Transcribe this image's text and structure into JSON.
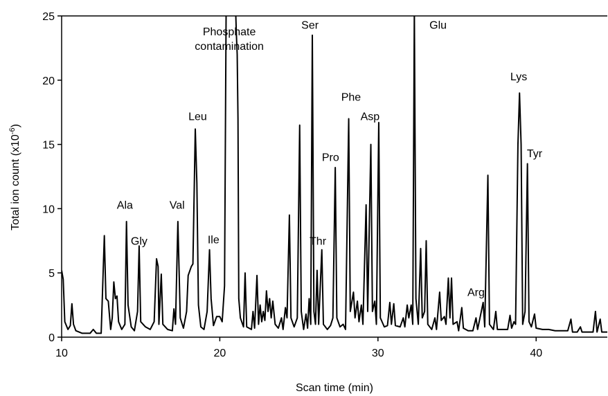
{
  "chart_data": {
    "type": "line",
    "xlabel": "Scan time (min)",
    "ylabel_main": "Total ion count (x10",
    "ylabel_exp": "-6",
    "ylabel_end": ")",
    "xlim": [
      10,
      44.5
    ],
    "ylim": [
      0,
      25
    ],
    "grid": false,
    "x_ticks": [
      10,
      20,
      30,
      40
    ],
    "x_tick_labels": [
      "10",
      "20",
      "30",
      "40"
    ],
    "y_ticks": [
      0,
      5,
      10,
      15,
      20,
      25
    ],
    "y_tick_labels": [
      "0",
      "5",
      "10",
      "15",
      "20",
      "25"
    ],
    "annotations": [
      {
        "id": "phosphate",
        "lines": [
          "Phosphate",
          "contamination"
        ],
        "x": 20.6,
        "y": 23.5
      },
      {
        "id": "ala",
        "lines": [
          "Ala"
        ],
        "x": 14.0,
        "y": 10.0
      },
      {
        "id": "gly",
        "lines": [
          "Gly"
        ],
        "x": 14.9,
        "y": 7.2
      },
      {
        "id": "val",
        "lines": [
          "Val"
        ],
        "x": 17.3,
        "y": 10.0
      },
      {
        "id": "leu",
        "lines": [
          "Leu"
        ],
        "x": 18.6,
        "y": 16.9
      },
      {
        "id": "ile",
        "lines": [
          "Ile"
        ],
        "x": 19.6,
        "y": 7.3
      },
      {
        "id": "ser",
        "lines": [
          "Ser"
        ],
        "x": 25.7,
        "y": 24.0
      },
      {
        "id": "thr",
        "lines": [
          "Thr"
        ],
        "x": 26.2,
        "y": 7.2
      },
      {
        "id": "pro",
        "lines": [
          "Pro"
        ],
        "x": 27.0,
        "y": 13.7
      },
      {
        "id": "phe",
        "lines": [
          "Phe"
        ],
        "x": 28.3,
        "y": 18.4
      },
      {
        "id": "asp",
        "lines": [
          "Asp"
        ],
        "x": 29.5,
        "y": 16.9
      },
      {
        "id": "glu",
        "lines": [
          "Glu"
        ],
        "x": 33.8,
        "y": 24.0
      },
      {
        "id": "arg",
        "lines": [
          "Arg"
        ],
        "x": 36.2,
        "y": 3.2
      },
      {
        "id": "lys",
        "lines": [
          "Lys"
        ],
        "x": 38.9,
        "y": 20.0
      },
      {
        "id": "tyr",
        "lines": [
          "Tyr"
        ],
        "x": 39.9,
        "y": 14.0
      }
    ],
    "series": [
      {
        "points": [
          [
            10.0,
            5.2
          ],
          [
            10.1,
            4.5
          ],
          [
            10.2,
            1.2
          ],
          [
            10.4,
            0.6
          ],
          [
            10.55,
            0.9
          ],
          [
            10.65,
            2.6
          ],
          [
            10.75,
            1.0
          ],
          [
            10.9,
            0.5
          ],
          [
            11.3,
            0.3
          ],
          [
            11.8,
            0.3
          ],
          [
            12.0,
            0.6
          ],
          [
            12.2,
            0.3
          ],
          [
            12.5,
            0.3
          ],
          [
            12.7,
            7.9
          ],
          [
            12.8,
            3.0
          ],
          [
            12.95,
            2.8
          ],
          [
            13.1,
            0.6
          ],
          [
            13.2,
            1.5
          ],
          [
            13.3,
            4.3
          ],
          [
            13.4,
            3.0
          ],
          [
            13.5,
            3.2
          ],
          [
            13.6,
            1.2
          ],
          [
            13.8,
            0.6
          ],
          [
            14.0,
            1.0
          ],
          [
            14.1,
            9.0
          ],
          [
            14.2,
            2.5
          ],
          [
            14.4,
            0.8
          ],
          [
            14.6,
            0.5
          ],
          [
            14.8,
            2.0
          ],
          [
            14.9,
            7.1
          ],
          [
            15.0,
            1.2
          ],
          [
            15.3,
            0.8
          ],
          [
            15.6,
            0.6
          ],
          [
            15.85,
            1.2
          ],
          [
            16.0,
            6.1
          ],
          [
            16.1,
            5.5
          ],
          [
            16.15,
            1.0
          ],
          [
            16.3,
            4.9
          ],
          [
            16.4,
            1.0
          ],
          [
            16.7,
            0.6
          ],
          [
            17.0,
            0.5
          ],
          [
            17.1,
            2.2
          ],
          [
            17.2,
            1.0
          ],
          [
            17.35,
            9.0
          ],
          [
            17.5,
            1.5
          ],
          [
            17.7,
            0.7
          ],
          [
            17.9,
            2.0
          ],
          [
            18.0,
            4.8
          ],
          [
            18.2,
            5.5
          ],
          [
            18.3,
            5.7
          ],
          [
            18.45,
            16.2
          ],
          [
            18.55,
            12.0
          ],
          [
            18.65,
            2.5
          ],
          [
            18.8,
            0.8
          ],
          [
            19.0,
            0.6
          ],
          [
            19.2,
            2.0
          ],
          [
            19.35,
            6.8
          ],
          [
            19.45,
            3.0
          ],
          [
            19.6,
            0.9
          ],
          [
            19.8,
            1.6
          ],
          [
            20.0,
            1.6
          ],
          [
            20.15,
            1.2
          ],
          [
            20.3,
            4.0
          ],
          [
            20.4,
            25.5
          ],
          [
            21.0,
            25.5
          ],
          [
            21.05,
            23.5
          ],
          [
            21.1,
            22.0
          ],
          [
            21.15,
            17.0
          ],
          [
            21.2,
            3.0
          ],
          [
            21.3,
            1.5
          ],
          [
            21.5,
            0.8
          ],
          [
            21.6,
            5.0
          ],
          [
            21.7,
            0.8
          ],
          [
            22.0,
            0.6
          ],
          [
            22.1,
            2.0
          ],
          [
            22.2,
            0.7
          ],
          [
            22.35,
            4.8
          ],
          [
            22.45,
            1.0
          ],
          [
            22.55,
            2.5
          ],
          [
            22.65,
            1.2
          ],
          [
            22.75,
            2.0
          ],
          [
            22.85,
            1.3
          ],
          [
            22.95,
            3.6
          ],
          [
            23.05,
            2.0
          ],
          [
            23.15,
            3.0
          ],
          [
            23.25,
            1.5
          ],
          [
            23.35,
            2.8
          ],
          [
            23.5,
            1.0
          ],
          [
            23.7,
            0.7
          ],
          [
            23.9,
            1.5
          ],
          [
            24.0,
            0.6
          ],
          [
            24.15,
            2.3
          ],
          [
            24.25,
            1.5
          ],
          [
            24.4,
            9.5
          ],
          [
            24.5,
            1.5
          ],
          [
            24.7,
            0.8
          ],
          [
            24.9,
            1.5
          ],
          [
            25.05,
            16.5
          ],
          [
            25.15,
            2.0
          ],
          [
            25.3,
            0.6
          ],
          [
            25.45,
            1.8
          ],
          [
            25.55,
            0.7
          ],
          [
            25.65,
            3.0
          ],
          [
            25.75,
            1.0
          ],
          [
            25.85,
            23.5
          ],
          [
            25.95,
            2.0
          ],
          [
            26.05,
            1.0
          ],
          [
            26.15,
            5.2
          ],
          [
            26.25,
            1.0
          ],
          [
            26.45,
            6.8
          ],
          [
            26.55,
            1.0
          ],
          [
            26.8,
            0.6
          ],
          [
            27.0,
            0.9
          ],
          [
            27.15,
            1.5
          ],
          [
            27.3,
            13.2
          ],
          [
            27.4,
            1.5
          ],
          [
            27.6,
            0.8
          ],
          [
            27.8,
            1.0
          ],
          [
            27.95,
            0.6
          ],
          [
            28.15,
            17.0
          ],
          [
            28.25,
            2.0
          ],
          [
            28.45,
            3.5
          ],
          [
            28.55,
            1.5
          ],
          [
            28.7,
            2.8
          ],
          [
            28.8,
            1.2
          ],
          [
            28.95,
            2.5
          ],
          [
            29.05,
            1.0
          ],
          [
            29.25,
            10.3
          ],
          [
            29.35,
            2.0
          ],
          [
            29.55,
            15.0
          ],
          [
            29.65,
            2.0
          ],
          [
            29.8,
            2.8
          ],
          [
            29.9,
            1.0
          ],
          [
            30.05,
            16.7
          ],
          [
            30.15,
            1.5
          ],
          [
            30.4,
            0.8
          ],
          [
            30.6,
            0.9
          ],
          [
            30.75,
            2.7
          ],
          [
            30.85,
            1.0
          ],
          [
            31.0,
            2.6
          ],
          [
            31.1,
            0.9
          ],
          [
            31.4,
            0.8
          ],
          [
            31.6,
            1.5
          ],
          [
            31.7,
            0.8
          ],
          [
            31.85,
            2.5
          ],
          [
            31.95,
            1.5
          ],
          [
            32.1,
            2.5
          ],
          [
            32.2,
            1.0
          ],
          [
            32.3,
            25.5
          ],
          [
            32.4,
            3.0
          ],
          [
            32.55,
            1.0
          ],
          [
            32.7,
            6.9
          ],
          [
            32.8,
            1.5
          ],
          [
            32.95,
            2.0
          ],
          [
            33.05,
            7.5
          ],
          [
            33.15,
            1.0
          ],
          [
            33.4,
            0.6
          ],
          [
            33.6,
            1.5
          ],
          [
            33.7,
            0.6
          ],
          [
            33.9,
            3.5
          ],
          [
            34.0,
            1.3
          ],
          [
            34.2,
            1.6
          ],
          [
            34.3,
            1.0
          ],
          [
            34.45,
            4.6
          ],
          [
            34.55,
            1.5
          ],
          [
            34.65,
            4.6
          ],
          [
            34.75,
            1.0
          ],
          [
            35.0,
            1.2
          ],
          [
            35.1,
            0.5
          ],
          [
            35.3,
            2.3
          ],
          [
            35.4,
            0.7
          ],
          [
            35.7,
            0.5
          ],
          [
            36.0,
            0.5
          ],
          [
            36.2,
            1.5
          ],
          [
            36.3,
            0.6
          ],
          [
            36.65,
            2.7
          ],
          [
            36.75,
            0.8
          ],
          [
            36.95,
            12.6
          ],
          [
            37.05,
            1.0
          ],
          [
            37.3,
            0.6
          ],
          [
            37.45,
            2.0
          ],
          [
            37.55,
            0.6
          ],
          [
            37.9,
            0.6
          ],
          [
            38.2,
            0.6
          ],
          [
            38.35,
            1.7
          ],
          [
            38.45,
            0.7
          ],
          [
            38.6,
            1.2
          ],
          [
            38.7,
            1.0
          ],
          [
            38.85,
            15.0
          ],
          [
            38.95,
            19.0
          ],
          [
            39.05,
            15.0
          ],
          [
            39.15,
            1.0
          ],
          [
            39.3,
            2.0
          ],
          [
            39.45,
            13.5
          ],
          [
            39.55,
            1.2
          ],
          [
            39.7,
            0.8
          ],
          [
            39.9,
            1.8
          ],
          [
            40.0,
            0.7
          ],
          [
            40.4,
            0.6
          ],
          [
            40.8,
            0.6
          ],
          [
            41.2,
            0.5
          ],
          [
            41.6,
            0.5
          ],
          [
            42.0,
            0.5
          ],
          [
            42.2,
            1.4
          ],
          [
            42.3,
            0.4
          ],
          [
            42.6,
            0.4
          ],
          [
            42.8,
            0.8
          ],
          [
            42.9,
            0.4
          ],
          [
            43.2,
            0.4
          ],
          [
            43.6,
            0.4
          ],
          [
            43.75,
            2.0
          ],
          [
            43.85,
            0.4
          ],
          [
            44.05,
            1.4
          ],
          [
            44.15,
            0.4
          ],
          [
            44.5,
            0.4
          ]
        ]
      }
    ]
  }
}
